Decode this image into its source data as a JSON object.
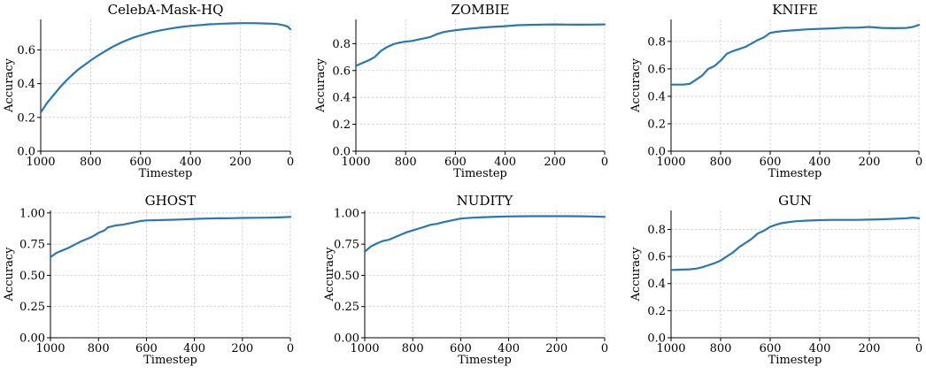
{
  "colors": {
    "line": "#2a77b4",
    "grid": "#cccccc"
  },
  "chart_data": [
    {
      "type": "line",
      "title": "CelebA-Mask-HQ",
      "xlabel": "Timestep",
      "ylabel": "Accuracy",
      "xlim": [
        1000,
        0
      ],
      "ylim": [
        0,
        0.78
      ],
      "grid": true,
      "xticks": [
        1000,
        800,
        600,
        400,
        200,
        0
      ],
      "xtick_labels": [
        "1000",
        "800",
        "600",
        "400",
        "200",
        "0"
      ],
      "yticks": [
        0,
        0.2,
        0.4,
        0.6
      ],
      "ytick_labels": [
        "0.0",
        "0.2",
        "0.4",
        "0.6"
      ],
      "series": [
        {
          "x": [
            1000,
            975,
            950,
            925,
            900,
            875,
            850,
            825,
            800,
            775,
            750,
            725,
            700,
            675,
            650,
            625,
            600,
            575,
            550,
            525,
            500,
            475,
            450,
            425,
            400,
            375,
            350,
            325,
            300,
            275,
            250,
            225,
            200,
            175,
            150,
            125,
            100,
            75,
            50,
            25,
            10,
            0
          ],
          "y": [
            0.23,
            0.285,
            0.33,
            0.375,
            0.415,
            0.45,
            0.483,
            0.51,
            0.537,
            0.562,
            0.585,
            0.607,
            0.627,
            0.645,
            0.66,
            0.674,
            0.686,
            0.697,
            0.706,
            0.714,
            0.721,
            0.727,
            0.733,
            0.738,
            0.742,
            0.745,
            0.748,
            0.751,
            0.753,
            0.755,
            0.756,
            0.757,
            0.758,
            0.758,
            0.758,
            0.757,
            0.756,
            0.755,
            0.752,
            0.745,
            0.737,
            0.722
          ]
        }
      ]
    },
    {
      "type": "line",
      "title": "ZOMBIE",
      "xlabel": "Timestep",
      "ylabel": "Accuracy",
      "xlim": [
        1000,
        0
      ],
      "ylim": [
        0,
        0.98
      ],
      "grid": true,
      "xticks": [
        1000,
        800,
        600,
        400,
        200,
        0
      ],
      "xtick_labels": [
        "1000",
        "800",
        "600",
        "400",
        "200",
        "0"
      ],
      "yticks": [
        0,
        0.2,
        0.4,
        0.6,
        0.8
      ],
      "ytick_labels": [
        "0.0",
        "0.2",
        "0.4",
        "0.6",
        "0.8"
      ],
      "series": [
        {
          "x": [
            1000,
            975,
            950,
            925,
            900,
            875,
            850,
            825,
            800,
            775,
            750,
            725,
            700,
            675,
            650,
            625,
            600,
            575,
            550,
            500,
            450,
            400,
            350,
            300,
            250,
            200,
            150,
            100,
            50,
            0
          ],
          "y": [
            0.635,
            0.655,
            0.675,
            0.7,
            0.745,
            0.775,
            0.795,
            0.808,
            0.815,
            0.82,
            0.83,
            0.84,
            0.85,
            0.87,
            0.885,
            0.893,
            0.9,
            0.905,
            0.91,
            0.918,
            0.925,
            0.93,
            0.937,
            0.94,
            0.942,
            0.943,
            0.942,
            0.941,
            0.942,
            0.943
          ]
        }
      ]
    },
    {
      "type": "line",
      "title": "KNIFE",
      "xlabel": "Timestep",
      "ylabel": "Accuracy",
      "xlim": [
        1000,
        0
      ],
      "ylim": [
        0,
        0.96
      ],
      "grid": true,
      "xticks": [
        1000,
        800,
        600,
        400,
        200,
        0
      ],
      "xtick_labels": [
        "1000",
        "800",
        "600",
        "400",
        "200",
        "0"
      ],
      "yticks": [
        0,
        0.2,
        0.4,
        0.6,
        0.8
      ],
      "ytick_labels": [
        "0.0",
        "0.2",
        "0.4",
        "0.6",
        "0.8"
      ],
      "series": [
        {
          "x": [
            1000,
            975,
            950,
            925,
            900,
            875,
            850,
            825,
            800,
            775,
            750,
            725,
            700,
            675,
            650,
            625,
            610,
            600,
            575,
            550,
            500,
            450,
            400,
            350,
            300,
            250,
            200,
            150,
            100,
            50,
            25,
            0
          ],
          "y": [
            0.485,
            0.485,
            0.485,
            0.49,
            0.52,
            0.55,
            0.6,
            0.62,
            0.66,
            0.71,
            0.73,
            0.745,
            0.76,
            0.785,
            0.81,
            0.83,
            0.85,
            0.862,
            0.87,
            0.875,
            0.882,
            0.888,
            0.892,
            0.895,
            0.9,
            0.9,
            0.905,
            0.898,
            0.896,
            0.898,
            0.905,
            0.92
          ]
        }
      ]
    },
    {
      "type": "line",
      "title": "GHOST",
      "xlabel": "Timestep",
      "ylabel": "Accuracy",
      "xlim": [
        1000,
        0
      ],
      "ylim": [
        0,
        1.02
      ],
      "grid": true,
      "xticks": [
        1000,
        800,
        600,
        400,
        200,
        0
      ],
      "xtick_labels": [
        "1000",
        "800",
        "600",
        "400",
        "200",
        "0"
      ],
      "yticks": [
        0,
        0.25,
        0.5,
        0.75,
        1.0
      ],
      "ytick_labels": [
        "0.00",
        "0.25",
        "0.50",
        "0.75",
        "1.00"
      ],
      "series": [
        {
          "x": [
            1000,
            975,
            950,
            925,
            900,
            875,
            850,
            825,
            800,
            775,
            760,
            750,
            725,
            700,
            675,
            650,
            625,
            600,
            550,
            500,
            450,
            400,
            350,
            300,
            250,
            200,
            150,
            100,
            50,
            0
          ],
          "y": [
            0.645,
            0.68,
            0.7,
            0.72,
            0.745,
            0.77,
            0.79,
            0.81,
            0.84,
            0.86,
            0.885,
            0.89,
            0.9,
            0.905,
            0.915,
            0.925,
            0.935,
            0.94,
            0.942,
            0.945,
            0.948,
            0.952,
            0.955,
            0.957,
            0.958,
            0.96,
            0.961,
            0.962,
            0.964,
            0.968
          ]
        }
      ]
    },
    {
      "type": "line",
      "title": "NUDITY",
      "xlabel": "Timestep",
      "ylabel": "Accuracy",
      "xlim": [
        1000,
        0
      ],
      "ylim": [
        0,
        1.02
      ],
      "grid": true,
      "xticks": [
        1000,
        800,
        600,
        400,
        200,
        0
      ],
      "xtick_labels": [
        "1000",
        "800",
        "600",
        "400",
        "200",
        "0"
      ],
      "yticks": [
        0,
        0.25,
        0.5,
        0.75,
        1.0
      ],
      "ytick_labels": [
        "0.00",
        "0.25",
        "0.50",
        "0.75",
        "1.00"
      ],
      "series": [
        {
          "x": [
            1000,
            975,
            950,
            925,
            900,
            875,
            850,
            825,
            800,
            775,
            750,
            725,
            700,
            675,
            650,
            625,
            600,
            550,
            500,
            450,
            400,
            350,
            300,
            250,
            200,
            150,
            100,
            50,
            0
          ],
          "y": [
            0.69,
            0.73,
            0.755,
            0.775,
            0.785,
            0.805,
            0.825,
            0.845,
            0.86,
            0.875,
            0.89,
            0.905,
            0.912,
            0.925,
            0.935,
            0.945,
            0.955,
            0.962,
            0.966,
            0.97,
            0.972,
            0.973,
            0.974,
            0.974,
            0.974,
            0.974,
            0.973,
            0.972,
            0.968
          ]
        }
      ]
    },
    {
      "type": "line",
      "title": "GUN",
      "xlabel": "Timestep",
      "ylabel": "Accuracy",
      "xlim": [
        1000,
        0
      ],
      "ylim": [
        0,
        0.94
      ],
      "grid": true,
      "xticks": [
        1000,
        800,
        600,
        400,
        200,
        0
      ],
      "xtick_labels": [
        "1000",
        "800",
        "600",
        "400",
        "200",
        "0"
      ],
      "yticks": [
        0,
        0.2,
        0.4,
        0.6,
        0.8
      ],
      "ytick_labels": [
        "0.0",
        "0.2",
        "0.4",
        "0.6",
        "0.8"
      ],
      "series": [
        {
          "x": [
            1000,
            975,
            950,
            925,
            900,
            875,
            850,
            825,
            800,
            775,
            750,
            725,
            700,
            675,
            650,
            625,
            600,
            575,
            550,
            500,
            450,
            400,
            350,
            300,
            250,
            200,
            150,
            100,
            50,
            25,
            0
          ],
          "y": [
            0.5,
            0.502,
            0.503,
            0.505,
            0.51,
            0.52,
            0.535,
            0.55,
            0.57,
            0.6,
            0.63,
            0.67,
            0.7,
            0.73,
            0.77,
            0.79,
            0.82,
            0.835,
            0.848,
            0.86,
            0.865,
            0.868,
            0.87,
            0.87,
            0.87,
            0.872,
            0.875,
            0.878,
            0.882,
            0.887,
            0.882
          ]
        }
      ]
    }
  ]
}
